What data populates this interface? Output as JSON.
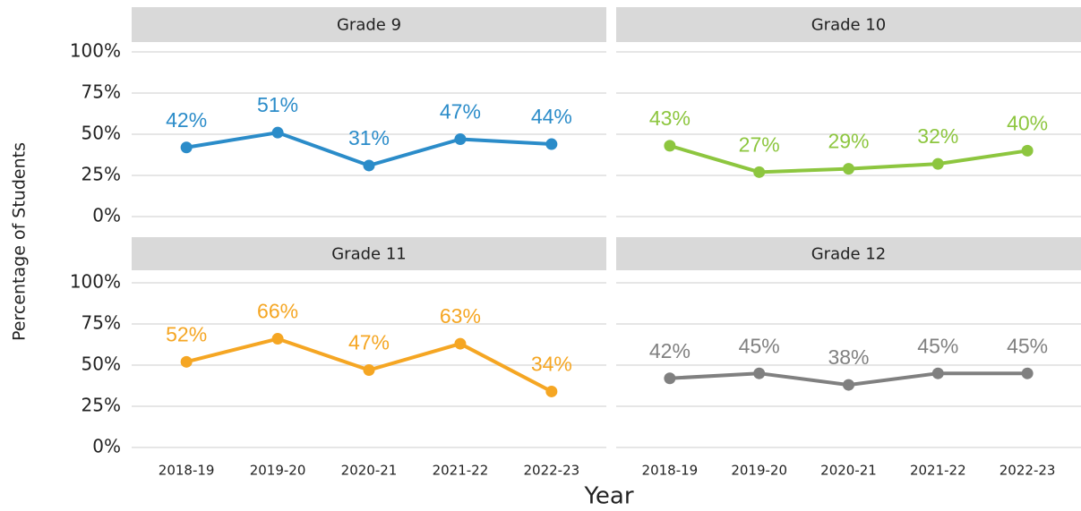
{
  "chart_data": {
    "type": "line",
    "x_label": "Year",
    "y_label": "Percentage of Students",
    "categories": [
      "2018-19",
      "2019-20",
      "2020-21",
      "2021-22",
      "2022-23"
    ],
    "ylim": [
      0,
      100
    ],
    "yticks": [
      {
        "value": 0,
        "label": "0%"
      },
      {
        "value": 25,
        "label": "25%"
      },
      {
        "value": 50,
        "label": "50%"
      },
      {
        "value": 75,
        "label": "75%"
      },
      {
        "value": 100,
        "label": "100%"
      }
    ],
    "grid": true,
    "series": [
      {
        "name": "Grade 9",
        "color": "#2b8cc9",
        "values": [
          42,
          51,
          31,
          47,
          44
        ],
        "value_labels": [
          "42%",
          "51%",
          "31%",
          "47%",
          "44%"
        ]
      },
      {
        "name": "Grade 10",
        "color": "#8dc63f",
        "values": [
          43,
          27,
          29,
          32,
          40
        ],
        "value_labels": [
          "43%",
          "27%",
          "29%",
          "32%",
          "40%"
        ]
      },
      {
        "name": "Grade 11",
        "color": "#f5a623",
        "values": [
          52,
          66,
          47,
          63,
          34
        ],
        "value_labels": [
          "52%",
          "66%",
          "47%",
          "63%",
          "34%"
        ]
      },
      {
        "name": "Grade 12",
        "color": "#808080",
        "values": [
          42,
          45,
          38,
          45,
          45
        ],
        "value_labels": [
          "42%",
          "45%",
          "38%",
          "45%",
          "45%"
        ]
      }
    ]
  }
}
